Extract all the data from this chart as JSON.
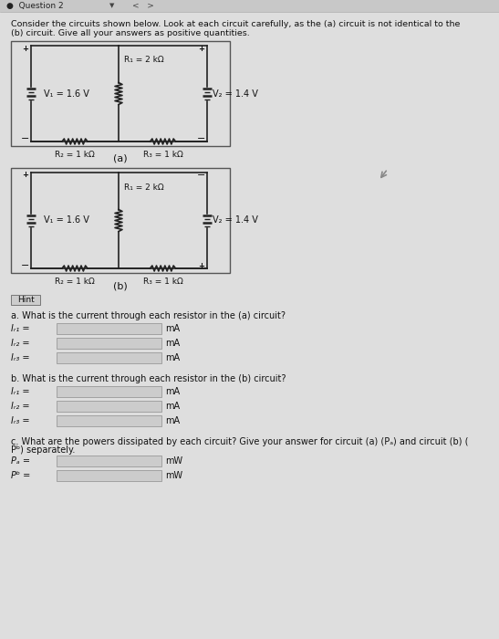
{
  "bg_color": "#d8d8d8",
  "header_text1": "Consider the circuits shown below. Look at each circuit carefully, as the (a) circuit is not identical to the",
  "header_text2": "(b) circuit. Give all your answers as positive quantities.",
  "circuit_a_label": "(a)",
  "circuit_b_label": "(b)",
  "hint_label": "Hint",
  "question_a": "a. What is the current through each resistor in the (a) circuit?",
  "question_b": "b. What is the current through each resistor in the (b) circuit?",
  "question_c1": "c. What are the powers dissipated by each circuit? Give your answer for circuit (a) (Pₐ) and circuit (b) (",
  "question_c2": "Pᵇ) separately.",
  "labels_a": [
    "Iᵣ₁ =",
    "Iᵣ₂ =",
    "Iᵣ₃ ="
  ],
  "labels_b": [
    "Iᵣ₁ =",
    "Iᵣ₂ =",
    "Iᵣ₃ ="
  ],
  "labels_c": [
    "Pₐ =",
    "Pᵇ ="
  ],
  "units_a": [
    "mA",
    "mA",
    "mA"
  ],
  "units_b": [
    "mA",
    "mA",
    "mA"
  ],
  "units_c": [
    "mW",
    "mW"
  ],
  "V1_label": "V₁ = 1.6 V",
  "V2_label": "V₂ = 1.4 V",
  "R1_label": "R₁ = 2 kΩ",
  "R2_label": "R₂ = 1 kΩ",
  "R3_label": "R₃ = 1 kΩ",
  "text_color": "#111111",
  "line_color": "#222222",
  "nav_bg": "#c8c8c8",
  "content_bg": "#dedede",
  "box_edge": "#555555",
  "input_bg": "#cccccc",
  "input_edge": "#999999",
  "hint_bg": "#cccccc"
}
